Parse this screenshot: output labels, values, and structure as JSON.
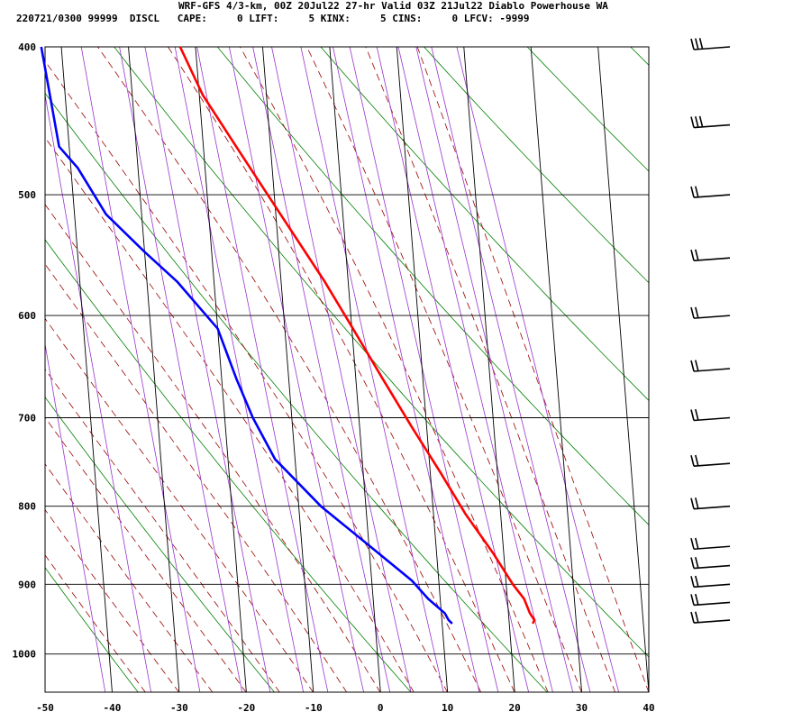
{
  "header": {
    "title": "WRF-GFS 4/3-km, 00Z 20Jul22 27-hr Valid 03Z 21Jul22 Diablo Powerhouse WA",
    "subtitle": "220721/0300 99999  DISCL   CAPE:     0 LIFT:     5 KINX:     5 CINS:     0 LFCV: -9999"
  },
  "chart_data": {
    "type": "line",
    "title": "WRF-GFS 4/3-km, 00Z 20Jul22 27-hr Valid 03Z 21Jul22 Diablo Powerhouse WA",
    "xlabel": "",
    "ylabel": "",
    "x_ticks": [
      -50,
      -40,
      -30,
      -20,
      -10,
      0,
      10,
      20,
      30,
      40
    ],
    "y_ticks": [
      400,
      500,
      600,
      700,
      800,
      900,
      1000
    ],
    "xlim": [
      -50,
      40
    ],
    "ylim": [
      1040,
      400
    ],
    "y_scale": "log-pressure",
    "grid": true,
    "colors": {
      "temperature": "#ff0000",
      "dewpoint": "#0000ff",
      "dry_adiabats": "#008000",
      "moist_adiabats": "#990000",
      "isohumes": "#9933cc"
    },
    "series": [
      {
        "color": "#ff0000",
        "points": [
          [
            -22.3,
            400
          ],
          [
            -19.5,
            430
          ],
          [
            -14.5,
            470
          ],
          [
            -9.3,
            515
          ],
          [
            -3.5,
            570
          ],
          [
            0,
            610
          ],
          [
            4,
            660
          ],
          [
            7.8,
            710
          ],
          [
            11.5,
            760
          ],
          [
            14.8,
            810
          ],
          [
            18.5,
            860
          ],
          [
            21,
            900
          ],
          [
            22.5,
            920
          ],
          [
            23.2,
            940
          ],
          [
            23.8,
            950
          ],
          [
            23.5,
            955
          ]
        ]
      },
      {
        "color": "#0000ff",
        "points": [
          [
            -43,
            400
          ],
          [
            -41.5,
            465
          ],
          [
            -39,
            480
          ],
          [
            -35.3,
            515
          ],
          [
            -30,
            545
          ],
          [
            -25.5,
            570
          ],
          [
            -20,
            612
          ],
          [
            -17.8,
            660
          ],
          [
            -15.8,
            700
          ],
          [
            -13,
            745
          ],
          [
            -6.7,
            800
          ],
          [
            -0.5,
            845
          ],
          [
            6,
            895
          ],
          [
            8.2,
            920
          ],
          [
            10.5,
            940
          ],
          [
            11,
            950
          ],
          [
            11.5,
            955
          ]
        ]
      }
    ],
    "wind_barbs": [
      {
        "pressure": 400,
        "barbs": 3
      },
      {
        "pressure": 450,
        "barbs": 3
      },
      {
        "pressure": 500,
        "barbs": 2
      },
      {
        "pressure": 550,
        "barbs": 2
      },
      {
        "pressure": 600,
        "barbs": 2
      },
      {
        "pressure": 650,
        "barbs": 2
      },
      {
        "pressure": 700,
        "barbs": 2
      },
      {
        "pressure": 750,
        "barbs": 2
      },
      {
        "pressure": 800,
        "barbs": 2
      },
      {
        "pressure": 850,
        "barbs": 2
      },
      {
        "pressure": 875,
        "barbs": 2
      },
      {
        "pressure": 900,
        "barbs": 2
      },
      {
        "pressure": 925,
        "barbs": 2
      },
      {
        "pressure": 950,
        "barbs": 2
      }
    ]
  }
}
